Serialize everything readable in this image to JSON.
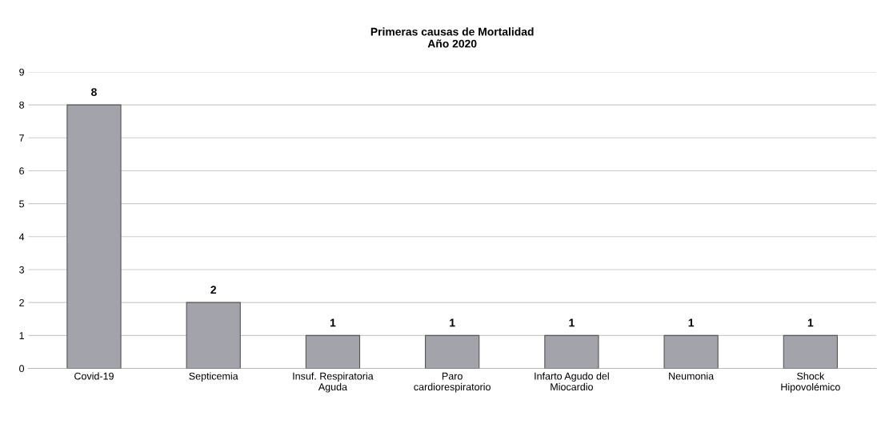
{
  "chart_data": {
    "type": "bar",
    "title": "Primeras causas de Mortalidad\nAño 2020",
    "categories": [
      "Covid-19",
      "Septicemia",
      "Insuf. Respiratoria\nAguda",
      "Paro\ncardiorespiratorio",
      "Infarto Agudo del\nMiocardio",
      "Neumonia",
      "Shock\nHipovolémico"
    ],
    "values": [
      8,
      2,
      1,
      1,
      1,
      1,
      1
    ],
    "color": "#a3a3ab",
    "ylim": [
      0,
      9
    ],
    "yticks": [
      0,
      1,
      2,
      3,
      4,
      5,
      6,
      7,
      8,
      9
    ],
    "grid": "y",
    "data_labels": true
  }
}
